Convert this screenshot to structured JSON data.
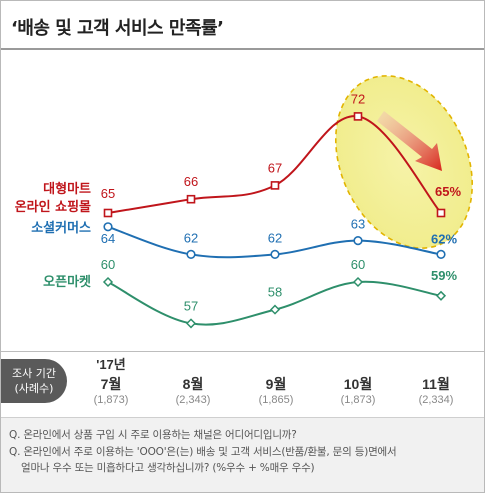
{
  "title": "‘배송 및 고객 서비스 만족률’",
  "chart_data": {
    "type": "line",
    "title": "‘배송 및 고객 서비스 만족률’",
    "categories": [
      "'17년 7월",
      "8월",
      "9월",
      "10월",
      "11월"
    ],
    "series": [
      {
        "name": "대형마트 온라인 쇼핑몰",
        "values": [
          65,
          66,
          67,
          72,
          65
        ],
        "color": "#c0151b",
        "labels": [
          "65",
          "66",
          "67",
          "72",
          "65%"
        ]
      },
      {
        "name": "소셜커머스",
        "values": [
          64,
          62,
          62,
          63,
          62
        ],
        "color": "#1f6fb2",
        "labels": [
          "64",
          "62",
          "62",
          "63",
          "62%"
        ]
      },
      {
        "name": "오픈마켓",
        "values": [
          60,
          57,
          58,
          60,
          59
        ],
        "color": "#2e8f6b",
        "labels": [
          "60",
          "57",
          "58",
          "60",
          "59%"
        ]
      }
    ],
    "legend": {
      "series1_line1": "대형마트",
      "series1_line2": "온라인 쇼핑몰",
      "series2": "소셜커머스",
      "series3": "오픈마켓"
    },
    "highlight_color": "#f3f0a0"
  },
  "footer": {
    "period_label_1": "조사 기간",
    "period_label_2": "(사례수)",
    "columns": [
      {
        "year": "'17년",
        "month": "7월",
        "n": "(1,873)"
      },
      {
        "year": "",
        "month": "8월",
        "n": "(2,343)"
      },
      {
        "year": "",
        "month": "9월",
        "n": "(1,865)"
      },
      {
        "year": "",
        "month": "10월",
        "n": "(1,873)"
      },
      {
        "year": "",
        "month": "11월",
        "n": "(2,334)"
      }
    ]
  },
  "notes": {
    "q1": "Q. 온라인에서 상품 구입 시 주로 이용하는 채널은 어디어디입니까?",
    "q2": "Q. 온라인에서 주로 이용하는 'OOO'은(는)  배송 및 고객 서비스(반품/환불,  문의 등)면에서",
    "q3": "얼마나 우수 또는 미흡하다고 생각하십니까?  (%우수 + %매우 우수)"
  }
}
